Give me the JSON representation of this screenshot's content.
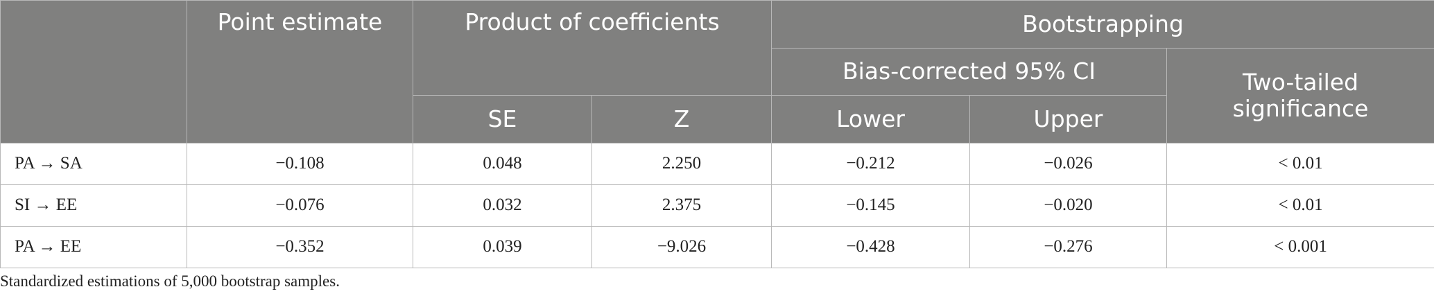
{
  "table": {
    "header": {
      "point_estimate": "Point estimate",
      "product_of_coefficients": "Product of coefficients",
      "bootstrapping": "Bootstrapping",
      "bias_corrected": "Bias-corrected 95% CI",
      "two_tailed": "Two-tailed significance",
      "se": "SE",
      "z": "Z",
      "lower": "Lower",
      "upper": "Upper"
    },
    "rows": [
      [
        "PA → SA",
        "−0.108",
        "0.048",
        "2.250",
        "−0.212",
        "−0.026",
        "< 0.01"
      ],
      [
        "SI → EE",
        "−0.076",
        "0.032",
        "2.375",
        "−0.145",
        "−0.020",
        "< 0.01"
      ],
      [
        "PA → EE",
        "−0.352",
        "0.039",
        "−9.026",
        "−0.428",
        "−0.276",
        "< 0.001"
      ]
    ],
    "footnote": "Standardized estimations of 5,000 bootstrap samples."
  }
}
